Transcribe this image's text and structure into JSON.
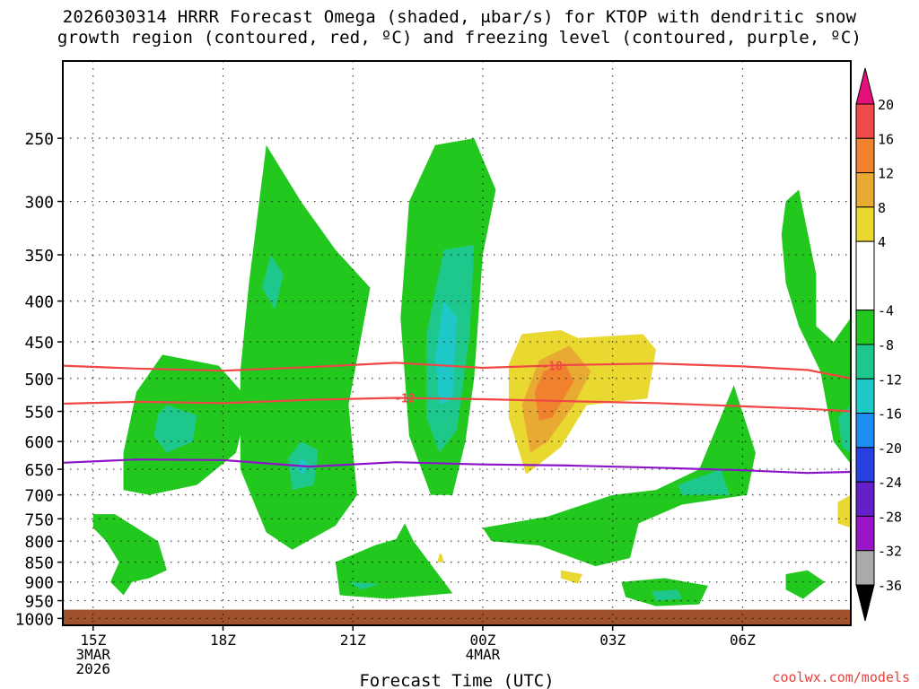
{
  "title_line1": "2026030314 HRRR Forecast Omega (shaded, μbar/s) for KTOP with dendritic snow",
  "title_line2": "growth region (contoured, red, ºC) and freezing level (contoured, purple, ºC)",
  "credit": "coolwx.com/models",
  "chart_data": {
    "type": "heatmap",
    "title": "2026030314 HRRR Forecast Omega (shaded, μbar/s) for KTOP with dendritic snow growth region (contoured, red, ºC) and freezing level (contoured, purple, ºC)",
    "xlabel": "Forecast Time (UTC)",
    "ylabel": "",
    "x_range_hours": [
      14.3,
      32.5
    ],
    "x_ticks": [
      {
        "hour": 15,
        "label": "15Z",
        "sub1": "3MAR",
        "sub2": "2026"
      },
      {
        "hour": 18,
        "label": "18Z",
        "sub1": "",
        "sub2": ""
      },
      {
        "hour": 21,
        "label": "21Z",
        "sub1": "",
        "sub2": ""
      },
      {
        "hour": 24,
        "label": "00Z",
        "sub1": "4MAR",
        "sub2": ""
      },
      {
        "hour": 27,
        "label": "03Z",
        "sub1": "",
        "sub2": ""
      },
      {
        "hour": 30,
        "label": "06Z",
        "sub1": "",
        "sub2": ""
      }
    ],
    "y_scale": "log-pressure",
    "y_range_hpa": [
      1020,
      200
    ],
    "y_ticks": [
      250,
      300,
      350,
      400,
      450,
      500,
      550,
      600,
      650,
      700,
      750,
      800,
      850,
      900,
      950,
      1000
    ],
    "grid": true,
    "ground_level_hpa": 975,
    "colorbar": {
      "label_values": [
        20,
        16,
        12,
        8,
        4,
        -4,
        -8,
        -12,
        -16,
        -20,
        -24,
        -28,
        -32,
        -36
      ],
      "bins": [
        {
          "from": 16,
          "to": 20,
          "color": "#f04a4a"
        },
        {
          "from": 12,
          "to": 16,
          "color": "#f0822e"
        },
        {
          "from": 8,
          "to": 12,
          "color": "#e8aa32"
        },
        {
          "from": 4,
          "to": 8,
          "color": "#e8d830"
        },
        {
          "from": -4,
          "to": 4,
          "color": "#ffffff"
        },
        {
          "from": -8,
          "to": -4,
          "color": "#22c81e"
        },
        {
          "from": -12,
          "to": -8,
          "color": "#1ec88c"
        },
        {
          "from": -16,
          "to": -12,
          "color": "#1ec8c8"
        },
        {
          "from": -20,
          "to": -16,
          "color": "#1e8cf0"
        },
        {
          "from": -24,
          "to": -20,
          "color": "#2840e0"
        },
        {
          "from": -28,
          "to": -24,
          "color": "#6420c8"
        },
        {
          "from": -32,
          "to": -28,
          "color": "#9a14c8"
        },
        {
          "from": -36,
          "to": -32,
          "color": "#aaaaaa"
        }
      ],
      "over_color": "#e6107a",
      "under_color": "#000000"
    },
    "contours": [
      {
        "label": "-18",
        "color": "#f04646",
        "label_at_hour": 25.6,
        "points": [
          [
            14.3,
            482
          ],
          [
            16,
            486
          ],
          [
            18,
            489
          ],
          [
            20,
            484
          ],
          [
            22,
            478
          ],
          [
            24,
            485
          ],
          [
            26,
            481
          ],
          [
            28,
            479
          ],
          [
            30,
            483
          ],
          [
            31.5,
            488
          ],
          [
            32.5,
            500
          ]
        ]
      },
      {
        "label": "-12",
        "color": "#f04646",
        "label_at_hour": 22.2,
        "points": [
          [
            14.3,
            538
          ],
          [
            16,
            535
          ],
          [
            18,
            537
          ],
          [
            20,
            532
          ],
          [
            22,
            529
          ],
          [
            24,
            531
          ],
          [
            26,
            534
          ],
          [
            28,
            537
          ],
          [
            30,
            542
          ],
          [
            31.5,
            546
          ],
          [
            32.5,
            550
          ]
        ]
      },
      {
        "label": "",
        "color": "#8c14c8",
        "label_at_hour": null,
        "points": [
          [
            14.3,
            638
          ],
          [
            16,
            632
          ],
          [
            18,
            633
          ],
          [
            20,
            645
          ],
          [
            22,
            637
          ],
          [
            24,
            641
          ],
          [
            26,
            643
          ],
          [
            28,
            647
          ],
          [
            30,
            652
          ],
          [
            31.5,
            657
          ],
          [
            32.5,
            655
          ]
        ]
      }
    ],
    "omega_regions": [
      {
        "value": -6,
        "points": [
          [
            16.6,
            467
          ],
          [
            17.9,
            482
          ],
          [
            18.6,
            532
          ],
          [
            18.3,
            620
          ],
          [
            17.4,
            680
          ],
          [
            16.3,
            700
          ],
          [
            15.7,
            690
          ],
          [
            15.7,
            620
          ],
          [
            16,
            520
          ]
        ]
      },
      {
        "value": -10,
        "points": [
          [
            16.7,
            540
          ],
          [
            17.4,
            556
          ],
          [
            17.3,
            600
          ],
          [
            16.7,
            620
          ],
          [
            16.4,
            590
          ],
          [
            16.5,
            555
          ]
        ]
      },
      {
        "value": -6,
        "points": [
          [
            19.0,
            255
          ],
          [
            19.8,
            300
          ],
          [
            20.6,
            345
          ],
          [
            21.4,
            385
          ],
          [
            20.9,
            540
          ],
          [
            21.1,
            700
          ],
          [
            20.6,
            765
          ],
          [
            19.6,
            820
          ],
          [
            19.0,
            780
          ],
          [
            18.4,
            650
          ],
          [
            18.4,
            490
          ],
          [
            18.6,
            380
          ]
        ]
      },
      {
        "value": -10,
        "points": [
          [
            19.1,
            350
          ],
          [
            19.4,
            370
          ],
          [
            19.2,
            410
          ],
          [
            18.9,
            385
          ]
        ]
      },
      {
        "value": -10,
        "points": [
          [
            19.8,
            600
          ],
          [
            20.2,
            615
          ],
          [
            20.1,
            680
          ],
          [
            19.6,
            690
          ],
          [
            19.5,
            630
          ]
        ]
      },
      {
        "value": -14,
        "points": [
          [
            19.8,
            630
          ],
          [
            19.95,
            640
          ],
          [
            19.85,
            660
          ],
          [
            19.7,
            650
          ]
        ]
      },
      {
        "value": -6,
        "points": [
          [
            22.9,
            255
          ],
          [
            23.8,
            250
          ],
          [
            24.3,
            290
          ],
          [
            24.0,
            350
          ],
          [
            23.8,
            500
          ],
          [
            23.6,
            600
          ],
          [
            23.3,
            700
          ],
          [
            22.8,
            700
          ],
          [
            22.3,
            590
          ],
          [
            22.1,
            420
          ],
          [
            22.3,
            300
          ]
        ]
      },
      {
        "value": -10,
        "points": [
          [
            23.1,
            345
          ],
          [
            23.8,
            340
          ],
          [
            23.7,
            440
          ],
          [
            23.4,
            580
          ],
          [
            23.0,
            620
          ],
          [
            22.7,
            560
          ],
          [
            22.7,
            440
          ]
        ]
      },
      {
        "value": -14,
        "points": [
          [
            23.1,
            400
          ],
          [
            23.4,
            420
          ],
          [
            23.3,
            530
          ],
          [
            23.0,
            540
          ],
          [
            22.9,
            470
          ]
        ]
      },
      {
        "value": 6,
        "points": [
          [
            24.9,
            440
          ],
          [
            25.8,
            435
          ],
          [
            26.2,
            445
          ],
          [
            27.7,
            440
          ],
          [
            28.0,
            460
          ],
          [
            27.8,
            530
          ],
          [
            26.4,
            540
          ],
          [
            25.8,
            610
          ],
          [
            25.0,
            660
          ],
          [
            24.6,
            560
          ],
          [
            24.6,
            480
          ]
        ]
      },
      {
        "value": 10,
        "points": [
          [
            25.3,
            475
          ],
          [
            26.0,
            455
          ],
          [
            26.5,
            490
          ],
          [
            26.1,
            540
          ],
          [
            25.5,
            600
          ],
          [
            25.1,
            620
          ],
          [
            24.9,
            540
          ]
        ]
      },
      {
        "value": 14,
        "points": [
          [
            25.4,
            490
          ],
          [
            25.9,
            478
          ],
          [
            26.1,
            505
          ],
          [
            25.6,
            560
          ],
          [
            25.3,
            565
          ],
          [
            25.2,
            520
          ]
        ]
      },
      {
        "value": -6,
        "points": [
          [
            24.0,
            770
          ],
          [
            25.5,
            745
          ],
          [
            27.0,
            700
          ],
          [
            28.0,
            690
          ],
          [
            29.0,
            650
          ],
          [
            29.8,
            510
          ],
          [
            30.3,
            620
          ],
          [
            30.1,
            700
          ],
          [
            28.6,
            720
          ],
          [
            27.6,
            760
          ],
          [
            27.4,
            840
          ],
          [
            26.6,
            860
          ],
          [
            25.3,
            810
          ],
          [
            24.2,
            800
          ]
        ]
      },
      {
        "value": -10,
        "points": [
          [
            28.5,
            680
          ],
          [
            29.5,
            650
          ],
          [
            29.7,
            700
          ],
          [
            28.6,
            700
          ]
        ]
      },
      {
        "value": -6,
        "points": [
          [
            15.0,
            740
          ],
          [
            15.5,
            740
          ],
          [
            16.5,
            800
          ],
          [
            16.7,
            870
          ],
          [
            16.3,
            890
          ],
          [
            15.9,
            900
          ],
          [
            15.7,
            935
          ],
          [
            15.4,
            900
          ],
          [
            15.6,
            850
          ],
          [
            15.3,
            800
          ],
          [
            15.0,
            770
          ]
        ]
      },
      {
        "value": -6,
        "points": [
          [
            20.6,
            850
          ],
          [
            21.5,
            810
          ],
          [
            22.0,
            795
          ],
          [
            22.2,
            760
          ],
          [
            22.4,
            800
          ],
          [
            23.3,
            930
          ],
          [
            21.8,
            945
          ],
          [
            20.7,
            935
          ]
        ]
      },
      {
        "value": -10,
        "points": [
          [
            20.9,
            900
          ],
          [
            21.6,
            905
          ],
          [
            21.2,
            920
          ]
        ]
      },
      {
        "value": -6,
        "points": [
          [
            27.2,
            900
          ],
          [
            28.2,
            890
          ],
          [
            29.2,
            910
          ],
          [
            29.0,
            960
          ],
          [
            28.0,
            965
          ],
          [
            27.3,
            940
          ]
        ]
      },
      {
        "value": -10,
        "points": [
          [
            27.9,
            925
          ],
          [
            28.5,
            920
          ],
          [
            28.6,
            945
          ],
          [
            28.0,
            950
          ]
        ]
      },
      {
        "value": -6,
        "points": [
          [
            31.0,
            300
          ],
          [
            31.3,
            290
          ],
          [
            31.7,
            370
          ],
          [
            31.7,
            430
          ],
          [
            32.1,
            450
          ],
          [
            32.5,
            420
          ],
          [
            32.5,
            640
          ],
          [
            32.1,
            600
          ],
          [
            31.8,
            490
          ],
          [
            31.3,
            430
          ],
          [
            31.0,
            380
          ],
          [
            30.9,
            330
          ]
        ]
      },
      {
        "value": -10,
        "points": [
          [
            32.2,
            560
          ],
          [
            32.5,
            540
          ],
          [
            32.5,
            620
          ],
          [
            32.3,
            610
          ]
        ]
      },
      {
        "value": -6,
        "points": [
          [
            31.0,
            880
          ],
          [
            31.5,
            870
          ],
          [
            31.9,
            900
          ],
          [
            31.4,
            945
          ],
          [
            31.0,
            920
          ]
        ]
      },
      {
        "value": 6,
        "points": [
          [
            25.8,
            870
          ],
          [
            26.3,
            880
          ],
          [
            26.2,
            905
          ],
          [
            25.8,
            890
          ]
        ]
      },
      {
        "value": 6,
        "points": [
          [
            32.2,
            715
          ],
          [
            32.5,
            700
          ],
          [
            32.5,
            770
          ],
          [
            32.2,
            760
          ]
        ]
      },
      {
        "value": 6,
        "points": [
          [
            23.0,
            830
          ],
          [
            23.05,
            830
          ],
          [
            23.1,
            850
          ],
          [
            22.95,
            850
          ]
        ]
      }
    ]
  }
}
